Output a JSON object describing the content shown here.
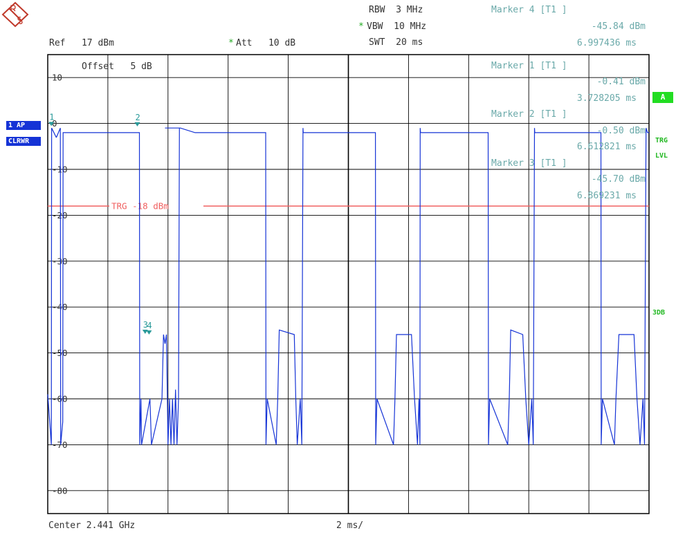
{
  "header": {
    "rbw": "RBW  3 MHz",
    "vbw": "VBW  10 MHz",
    "swt": "SWT  20 ms",
    "ref": "Ref   17 dBm",
    "att": "Att   10 dB",
    "offset": "Offset   5 dB",
    "center": "Center 2.441 GHz",
    "div": "2 ms/"
  },
  "markers_info": [
    {
      "title": "Marker 4 [T1 ]",
      "level": "-45.84 dBm",
      "time": "6.997436 ms"
    },
    {
      "title": "Marker 1 [T1 ]",
      "level": "-0.41 dBm",
      "time": "3.728205 ms"
    },
    {
      "title": "Marker 2 [T1 ]",
      "level": "-0.50 dBm",
      "time": "6.612821 ms"
    },
    {
      "title": "Marker 3 [T1 ]",
      "level": "-45.70 dBm",
      "time": "6.869231 ms"
    }
  ],
  "side_labels": {
    "trace_mode_1": "1 AP",
    "trace_mode_2": "CLRWR",
    "badge_a": "A",
    "trg": "TRG",
    "lvl": "LVL",
    "db3": "3DB"
  },
  "colors": {
    "trace": "#1533d6",
    "trigger": "#f06060",
    "marker": "#2a9a9a",
    "grid": "#000000"
  },
  "chart_data": {
    "type": "line",
    "xlim": [
      0,
      20
    ],
    "ylim": [
      -85,
      15
    ],
    "yticks": [
      10,
      0,
      -10,
      -20,
      -30,
      -40,
      -50,
      -60,
      -70,
      -80
    ],
    "ytick_labels": [
      "10",
      "0",
      "-10",
      "-20",
      "-30",
      "-40",
      "-50",
      "-60",
      "-70",
      "-80"
    ],
    "trigger": {
      "level": -18,
      "label": "TRG  -18  dBm"
    },
    "series": [
      {
        "x": [
          0,
          0.12,
          0.13,
          0.28,
          0.29,
          0.42,
          0.43,
          0.5,
          0.51,
          0.6,
          0.61,
          3.05,
          3.06,
          3.1,
          3.12,
          3.4,
          3.45,
          3.8,
          3.85,
          3.9,
          3.95,
          4.0,
          4.05,
          4.1,
          4.15,
          4.2,
          4.25,
          4.3,
          4.35,
          4.38,
          3.9,
          3.91,
          4.4,
          4.41,
          4.9,
          4.91,
          7.25,
          7.26,
          7.3,
          7.6,
          7.65,
          7.7,
          8.2,
          8.25,
          8.3,
          8.4,
          8.45,
          8.49,
          8.5,
          8.51,
          8.52,
          9.1,
          9.11,
          10.9,
          10.91,
          10.95,
          11.5,
          11.55,
          11.6,
          12.1,
          12.2,
          12.3,
          12.35,
          12.38,
          12.39,
          12.4,
          12.9,
          12.91,
          14.65,
          14.66,
          14.7,
          15.3,
          15.35,
          15.4,
          15.8,
          15.9,
          16.0,
          16.1,
          16.15,
          16.19,
          16.2,
          16.21,
          16.22,
          16.9,
          16.91,
          18.4,
          18.41,
          18.45,
          18.85,
          18.9,
          19.0,
          19.5,
          19.6,
          19.7,
          19.8,
          19.85,
          19.9,
          19.95,
          20
        ],
        "y": [
          -59,
          -70,
          -1,
          -3,
          -3,
          -1,
          -70,
          -65,
          -2,
          -2,
          -2,
          -2,
          -70,
          -60,
          -70,
          -60,
          -70,
          -60,
          -46,
          -48,
          -46,
          -70,
          -60,
          -70,
          -60,
          -70,
          -58,
          -70,
          -60,
          -1,
          -1,
          -1,
          -1,
          -1,
          -2,
          -2,
          -2,
          -70,
          -60,
          -70,
          -60,
          -45,
          -46,
          -60,
          -70,
          -60,
          -70,
          -1,
          -2,
          -2,
          -2,
          -2,
          -2,
          -2,
          -70,
          -60,
          -70,
          -60,
          -46,
          -46,
          -60,
          -70,
          -60,
          -70,
          -1,
          -2,
          -2,
          -2,
          -2,
          -70,
          -60,
          -70,
          -60,
          -45,
          -46,
          -60,
          -70,
          -60,
          -70,
          -1,
          -2,
          -2,
          -2,
          -2,
          -2,
          -2,
          -70,
          -60,
          -70,
          -60,
          -46,
          -46,
          -60,
          -70,
          -60,
          -70,
          -1,
          -2,
          -2
        ]
      }
    ],
    "markers": [
      {
        "label": "1",
        "x": 0.12,
        "y": -0.41
      },
      {
        "label": "2",
        "x": 2.98,
        "y": -0.5
      },
      {
        "label": "3",
        "x": 3.24,
        "y": -45.7
      },
      {
        "label": "4",
        "x": 3.37,
        "y": -45.84
      }
    ]
  }
}
